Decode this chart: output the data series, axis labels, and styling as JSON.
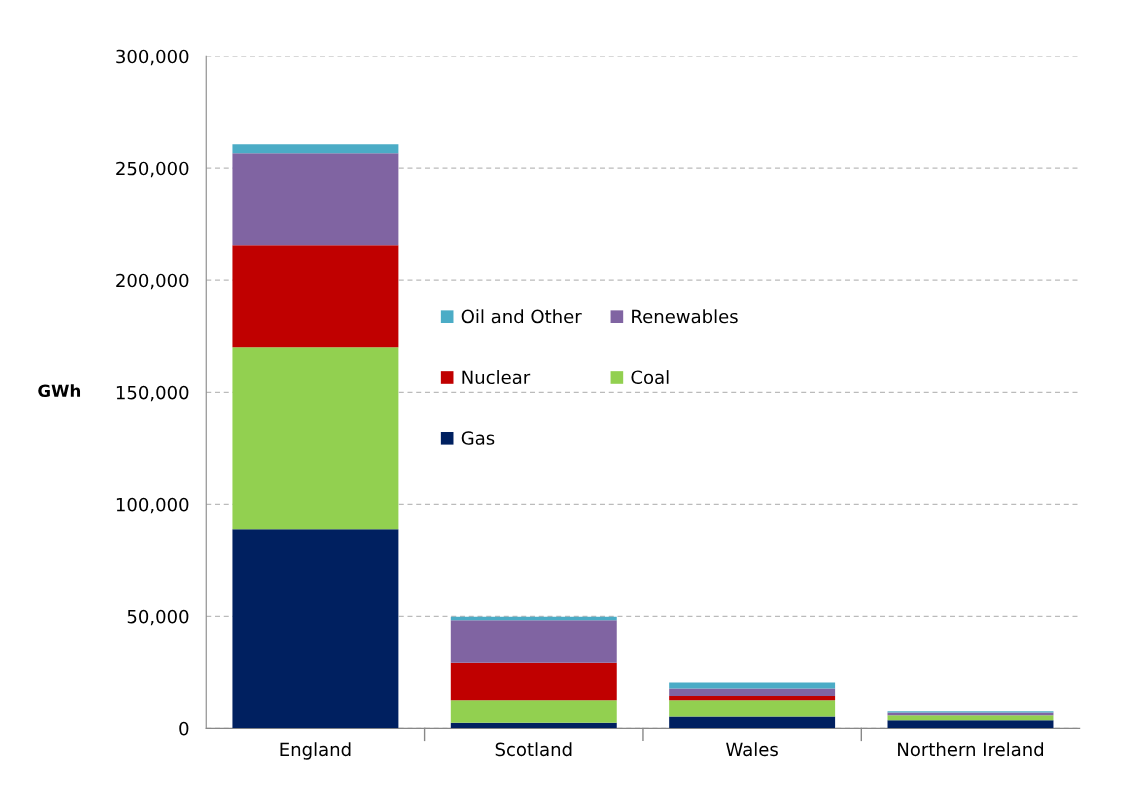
{
  "chart_data": {
    "type": "bar",
    "stacked": true,
    "ylabel": "GWh",
    "categories": [
      "England",
      "Scotland",
      "Wales",
      "Northern Ireland"
    ],
    "series": [
      {
        "name": "Gas",
        "color": "#002060",
        "values": [
          88900,
          2500,
          5300,
          3600
        ]
      },
      {
        "name": "Coal",
        "color": "#92d050",
        "values": [
          81200,
          10000,
          7200,
          2200
        ]
      },
      {
        "name": "Nuclear",
        "color": "#c00000",
        "values": [
          45500,
          16800,
          1900,
          0
        ]
      },
      {
        "name": "Renewables",
        "color": "#8064a2",
        "values": [
          41100,
          18900,
          3400,
          1300
        ]
      },
      {
        "name": "Oil and Other",
        "color": "#4bacc6",
        "values": [
          4000,
          1600,
          2700,
          500
        ]
      }
    ],
    "ylim": [
      0,
      300000
    ],
    "yticks": [
      {
        "value": 0,
        "label": "0"
      },
      {
        "value": 50000,
        "label": "50,000"
      },
      {
        "value": 100000,
        "label": "100,000"
      },
      {
        "value": 150000,
        "label": "150,000"
      },
      {
        "value": 200000,
        "label": "200,000"
      },
      {
        "value": 250000,
        "label": "250,000"
      },
      {
        "value": 300000,
        "label": "300,000"
      }
    ],
    "grid": "y",
    "legend": "center"
  }
}
